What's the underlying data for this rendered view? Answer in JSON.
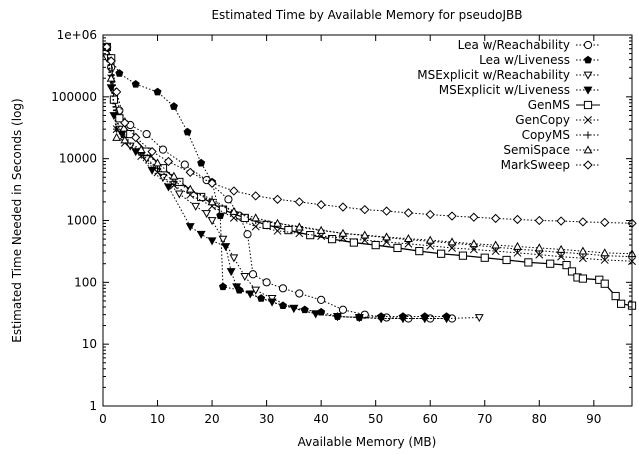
{
  "chart_data": {
    "type": "line",
    "title": "Estimated Time by Available Memory for pseudoJBB",
    "xlabel": "Available Memory (MB)",
    "ylabel": "Estimated Time Needed in Seconds (log)",
    "xlim": [
      0,
      97
    ],
    "ylim": [
      1,
      1000000
    ],
    "y_scale": "log",
    "grid": false,
    "legend_position": "top-right",
    "x_ticks": [
      {
        "value": 0,
        "label": "0"
      },
      {
        "value": 10,
        "label": "10"
      },
      {
        "value": 20,
        "label": "20"
      },
      {
        "value": 30,
        "label": "30"
      },
      {
        "value": 40,
        "label": "40"
      },
      {
        "value": 50,
        "label": "50"
      },
      {
        "value": 60,
        "label": "60"
      },
      {
        "value": 70,
        "label": "70"
      },
      {
        "value": 80,
        "label": "80"
      },
      {
        "value": 90,
        "label": "90"
      }
    ],
    "y_ticks": [
      {
        "value": 1,
        "label": "1"
      },
      {
        "value": 10,
        "label": "10"
      },
      {
        "value": 100,
        "label": "100"
      },
      {
        "value": 1000,
        "label": "1000"
      },
      {
        "value": 10000,
        "label": "10000"
      },
      {
        "value": 100000,
        "label": "100000"
      },
      {
        "value": 1000000,
        "label": "1e+06"
      }
    ],
    "series": [
      {
        "name": "Lea w/Reachability",
        "marker": "circle-open",
        "line": "dotted",
        "points": [
          [
            0.7,
            640000
          ],
          [
            1.5,
            300000
          ],
          [
            3,
            60000
          ],
          [
            5,
            35000
          ],
          [
            8,
            25000
          ],
          [
            11,
            14000
          ],
          [
            15,
            8000
          ],
          [
            19,
            4500
          ],
          [
            23,
            2200
          ],
          [
            25,
            1200
          ],
          [
            26.5,
            600
          ],
          [
            27.5,
            135
          ],
          [
            30,
            100
          ],
          [
            33,
            80
          ],
          [
            36,
            66
          ],
          [
            40,
            52
          ],
          [
            44,
            36
          ],
          [
            48,
            30
          ],
          [
            52,
            27
          ],
          [
            56,
            26
          ],
          [
            60,
            26
          ],
          [
            64,
            26
          ]
        ]
      },
      {
        "name": "Lea w/Liveness",
        "marker": "pentagon-filled",
        "line": "dotted",
        "points": [
          [
            0.7,
            640000
          ],
          [
            1.5,
            420000
          ],
          [
            3,
            240000
          ],
          [
            6,
            160000
          ],
          [
            10,
            120000
          ],
          [
            13,
            70000
          ],
          [
            15.5,
            27000
          ],
          [
            18,
            8500
          ],
          [
            20,
            4200
          ],
          [
            21.5,
            1200
          ],
          [
            22,
            85
          ],
          [
            25,
            75
          ],
          [
            29,
            55
          ],
          [
            33,
            42
          ],
          [
            37,
            36
          ],
          [
            40,
            33
          ],
          [
            43,
            28
          ],
          [
            47,
            27
          ],
          [
            51,
            28
          ],
          [
            55,
            28
          ],
          [
            59,
            28
          ],
          [
            63,
            28
          ]
        ]
      },
      {
        "name": "MSExplicit w/Reachability",
        "marker": "triangle-down-open",
        "line": "dotted",
        "points": [
          [
            0.7,
            430000
          ],
          [
            1.5,
            140000
          ],
          [
            3,
            30000
          ],
          [
            5,
            16000
          ],
          [
            8,
            10000
          ],
          [
            11,
            5000
          ],
          [
            14,
            2700
          ],
          [
            17,
            1700
          ],
          [
            19,
            1300
          ],
          [
            20,
            1000
          ],
          [
            22,
            500
          ],
          [
            24,
            250
          ],
          [
            26,
            125
          ],
          [
            28,
            75
          ],
          [
            31,
            55
          ],
          [
            35,
            38
          ],
          [
            39,
            31
          ],
          [
            43,
            28
          ],
          [
            47,
            27
          ],
          [
            51,
            26
          ],
          [
            55,
            26
          ],
          [
            59,
            26
          ],
          [
            63,
            26
          ],
          [
            69,
            27
          ]
        ]
      },
      {
        "name": "MSExplicit w/Liveness",
        "marker": "triangle-down-filled",
        "line": "dotted",
        "points": [
          [
            0.7,
            640000
          ],
          [
            1.5,
            140000
          ],
          [
            2,
            50000
          ],
          [
            3.5,
            25000
          ],
          [
            6,
            13000
          ],
          [
            9,
            6500
          ],
          [
            12,
            3500
          ],
          [
            16,
            800
          ],
          [
            18,
            600
          ],
          [
            20,
            470
          ],
          [
            22.5,
            380
          ],
          [
            23.5,
            150
          ],
          [
            24.5,
            85
          ],
          [
            27,
            65
          ],
          [
            31,
            48
          ],
          [
            35,
            38
          ],
          [
            39,
            31
          ],
          [
            43,
            28
          ],
          [
            47,
            27
          ],
          [
            51,
            26
          ],
          [
            55,
            26
          ],
          [
            59,
            26
          ],
          [
            63,
            26
          ]
        ]
      },
      {
        "name": "GenMS",
        "marker": "square-open",
        "line": "solid",
        "points": [
          [
            0.7,
            640000
          ],
          [
            1.5,
            420000
          ],
          [
            2,
            90000
          ],
          [
            3,
            45000
          ],
          [
            5,
            25000
          ],
          [
            8,
            13000
          ],
          [
            11,
            7000
          ],
          [
            14,
            4200
          ],
          [
            18,
            2400
          ],
          [
            22,
            1500
          ],
          [
            26,
            1100
          ],
          [
            30,
            850
          ],
          [
            34,
            700
          ],
          [
            38,
            580
          ],
          [
            42,
            500
          ],
          [
            46,
            440
          ],
          [
            50,
            400
          ],
          [
            54,
            360
          ],
          [
            58,
            320
          ],
          [
            62,
            290
          ],
          [
            66,
            270
          ],
          [
            70,
            250
          ],
          [
            74,
            230
          ],
          [
            78,
            210
          ],
          [
            82,
            200
          ],
          [
            85,
            190
          ],
          [
            86,
            150
          ],
          [
            87,
            120
          ],
          [
            88,
            115
          ],
          [
            91,
            110
          ],
          [
            92,
            95
          ],
          [
            94,
            60
          ],
          [
            95,
            45
          ],
          [
            97,
            42
          ]
        ]
      },
      {
        "name": "GenCopy",
        "marker": "x",
        "line": "dotted",
        "points": [
          [
            0.7,
            640000
          ],
          [
            1.5,
            200000
          ],
          [
            2.5,
            30000
          ],
          [
            4,
            18000
          ],
          [
            7,
            11000
          ],
          [
            10,
            6000
          ],
          [
            13,
            3700
          ],
          [
            16,
            2600
          ],
          [
            20,
            1700
          ],
          [
            24,
            1100
          ],
          [
            28,
            800
          ],
          [
            32,
            680
          ],
          [
            36,
            620
          ],
          [
            40,
            560
          ],
          [
            44,
            520
          ],
          [
            48,
            480
          ],
          [
            52,
            450
          ],
          [
            56,
            420
          ],
          [
            60,
            390
          ],
          [
            64,
            360
          ],
          [
            68,
            340
          ],
          [
            72,
            320
          ],
          [
            76,
            300
          ],
          [
            80,
            280
          ],
          [
            84,
            260
          ],
          [
            88,
            245
          ],
          [
            92,
            230
          ],
          [
            97,
            220
          ]
        ]
      },
      {
        "name": "CopyMS",
        "marker": "plus",
        "line": "dotted",
        "points": [
          [
            0.7,
            640000
          ],
          [
            1.5,
            180000
          ],
          [
            2.5,
            30000
          ],
          [
            4,
            22000
          ],
          [
            7,
            12000
          ],
          [
            10,
            7000
          ],
          [
            13,
            4300
          ],
          [
            16,
            3100
          ],
          [
            20,
            2200
          ],
          [
            24,
            1400
          ],
          [
            28,
            1000
          ],
          [
            32,
            900
          ],
          [
            36,
            800
          ],
          [
            40,
            700
          ],
          [
            44,
            620
          ],
          [
            48,
            570
          ],
          [
            52,
            530
          ],
          [
            56,
            490
          ],
          [
            60,
            460
          ],
          [
            64,
            430
          ],
          [
            68,
            400
          ],
          [
            72,
            370
          ],
          [
            76,
            345
          ],
          [
            80,
            325
          ],
          [
            84,
            305
          ],
          [
            88,
            290
          ],
          [
            92,
            270
          ],
          [
            97,
            260
          ]
        ]
      },
      {
        "name": "SemiSpace",
        "marker": "triangle-up-open",
        "line": "dotted",
        "points": [
          [
            0.7,
            640000
          ],
          [
            1.5,
            200000
          ],
          [
            2.5,
            22000
          ],
          [
            4,
            20000
          ],
          [
            7,
            14000
          ],
          [
            10,
            8500
          ],
          [
            13,
            5200
          ],
          [
            16,
            3200
          ],
          [
            20,
            2000
          ],
          [
            24,
            1400
          ],
          [
            28,
            1100
          ],
          [
            32,
            900
          ],
          [
            36,
            780
          ],
          [
            40,
            690
          ],
          [
            44,
            620
          ],
          [
            48,
            580
          ],
          [
            52,
            540
          ],
          [
            56,
            510
          ],
          [
            60,
            480
          ],
          [
            64,
            450
          ],
          [
            68,
            420
          ],
          [
            72,
            400
          ],
          [
            76,
            380
          ],
          [
            80,
            360
          ],
          [
            84,
            340
          ],
          [
            88,
            320
          ],
          [
            92,
            300
          ],
          [
            97,
            290
          ]
        ]
      },
      {
        "name": "MarkSweep",
        "marker": "diamond-open",
        "line": "dotted",
        "points": [
          [
            0.7,
            640000
          ],
          [
            1.5,
            380000
          ],
          [
            2.5,
            120000
          ],
          [
            4,
            38000
          ],
          [
            6,
            22000
          ],
          [
            9,
            13000
          ],
          [
            12,
            9000
          ],
          [
            16,
            6000
          ],
          [
            20,
            4000
          ],
          [
            24,
            3000
          ],
          [
            28,
            2500
          ],
          [
            32,
            2200
          ],
          [
            36,
            2000
          ],
          [
            40,
            1800
          ],
          [
            44,
            1650
          ],
          [
            48,
            1500
          ],
          [
            52,
            1420
          ],
          [
            56,
            1330
          ],
          [
            60,
            1250
          ],
          [
            64,
            1180
          ],
          [
            68,
            1130
          ],
          [
            72,
            1080
          ],
          [
            76,
            1040
          ],
          [
            80,
            1000
          ],
          [
            84,
            980
          ],
          [
            88,
            950
          ],
          [
            92,
            930
          ],
          [
            97,
            900
          ]
        ]
      }
    ]
  }
}
